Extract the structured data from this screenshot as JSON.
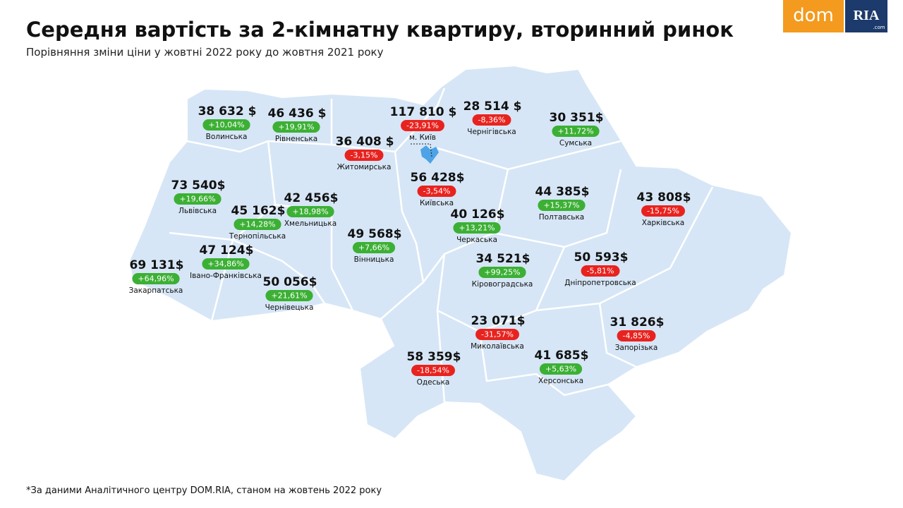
{
  "header": {
    "title": "Середня вартість за 2-кімнатну квартиру, вторинний ринок",
    "subtitle": "Порівняння зміни ціни у жовтні 2022 року до жовтня 2021 року"
  },
  "logo": {
    "left": "dom",
    "right": "RIA",
    "suffix": ".com"
  },
  "regions": [
    {
      "name": "Волинська",
      "price": "38 632 $",
      "change": "+10,04%",
      "color": "#3cb034"
    },
    {
      "name": "Рівненська",
      "price": "46 436 $",
      "change": "+19,91%",
      "color": "#3cb034"
    },
    {
      "name": "Житомирська",
      "price": "36 408 $",
      "change": "-3,15%",
      "color": "#e8231f"
    },
    {
      "name": "м. Київ",
      "price": "117 810 $",
      "change": "-23,91%",
      "color": "#e8231f"
    },
    {
      "name": "Чернігівська",
      "price": "28 514 $",
      "change": "-8,36%",
      "color": "#e8231f"
    },
    {
      "name": "Сумська",
      "price": "30 351$",
      "change": "+11,72%",
      "color": "#3cb034"
    },
    {
      "name": "Київська",
      "price": "56 428$",
      "change": "-3,54%",
      "color": "#e8231f"
    },
    {
      "name": "Львівська",
      "price": "73 540$",
      "change": "+19,66%",
      "color": "#3cb034"
    },
    {
      "name": "Хмельницька",
      "price": "42 456$",
      "change": "+18,98%",
      "color": "#3cb034"
    },
    {
      "name": "Тернопільська",
      "price": "45 162$",
      "change": "+14,28%",
      "color": "#3cb034"
    },
    {
      "name": "Полтавська",
      "price": "44 385$",
      "change": "+15,37%",
      "color": "#3cb034"
    },
    {
      "name": "Харківська",
      "price": "43 808$",
      "change": "-15,75%",
      "color": "#e8231f"
    },
    {
      "name": "Черкаська",
      "price": "40 126$",
      "change": "+13,21%",
      "color": "#3cb034"
    },
    {
      "name": "Вінницька",
      "price": "49 568$",
      "change": "+7,66%",
      "color": "#3cb034"
    },
    {
      "name": "Івано-Франківська",
      "price": "47 124$",
      "change": "+34,86%",
      "color": "#3cb034"
    },
    {
      "name": "Закарпатська",
      "price": "69 131$",
      "change": "+64,96%",
      "color": "#3cb034"
    },
    {
      "name": "Чернівецька",
      "price": "50 056$",
      "change": "+21,61%",
      "color": "#3cb034"
    },
    {
      "name": "Кіровоградська",
      "price": "34 521$",
      "change": "+99,25%",
      "color": "#3cb034"
    },
    {
      "name": "Дніпропетровська",
      "price": "50 593$",
      "change": "-5,81%",
      "color": "#e8231f"
    },
    {
      "name": "Миколаївська",
      "price": "23 071$",
      "change": "-31,57%",
      "color": "#e8231f"
    },
    {
      "name": "Запорізька",
      "price": "31 826$",
      "change": "-4,85%",
      "color": "#e8231f"
    },
    {
      "name": "Одеська",
      "price": "58 359$",
      "change": "-18,54%",
      "color": "#e8231f"
    },
    {
      "name": "Херсонська",
      "price": "41 685$",
      "change": "+5,63%",
      "color": "#3cb034"
    }
  ],
  "footnote": "*За даними Аналітичного центру DOM.RIA, станом на жовтень 2022 року"
}
